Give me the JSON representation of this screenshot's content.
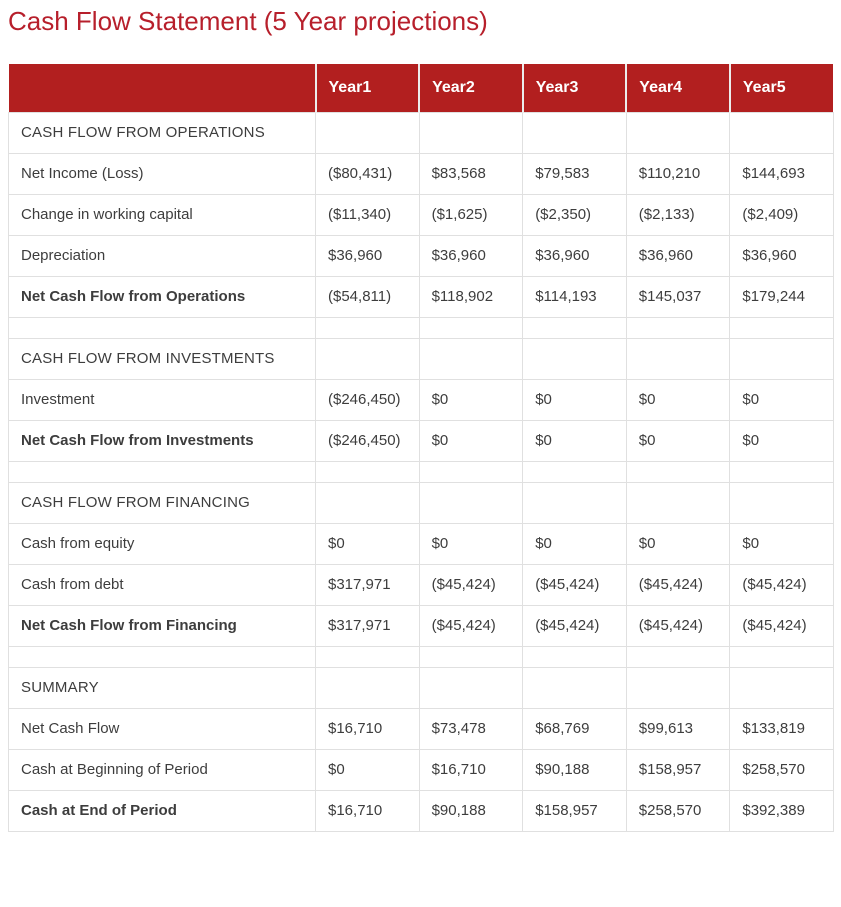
{
  "page": {
    "title": "Cash Flow Statement (5 Year projections)"
  },
  "colors": {
    "title_color": "#b71f2b",
    "header_bg": "#b21f1f",
    "header_text": "#ffffff",
    "body_text": "#3d3d3d",
    "border_color": "#e0e0e0"
  },
  "table": {
    "columns": [
      "",
      "Year1",
      "Year2",
      "Year3",
      "Year4",
      "Year5"
    ],
    "rows": [
      {
        "label": "CASH FLOW FROM OPERATIONS",
        "style": "section",
        "values": [
          "",
          "",
          "",
          "",
          ""
        ]
      },
      {
        "label": "Net Income (Loss)",
        "style": "data",
        "values": [
          "($80,431)",
          "$83,568",
          "$79,583",
          "$110,210",
          "$144,693"
        ]
      },
      {
        "label": "Change in working capital",
        "style": "data",
        "values": [
          "($11,340)",
          "($1,625)",
          "($2,350)",
          "($2,133)",
          "($2,409)"
        ]
      },
      {
        "label": "Depreciation",
        "style": "data",
        "values": [
          "$36,960",
          "$36,960",
          "$36,960",
          "$36,960",
          "$36,960"
        ]
      },
      {
        "label": "Net Cash Flow from Operations",
        "style": "total",
        "values": [
          "($54,811)",
          "$118,902",
          "$114,193",
          "$145,037",
          "$179,244"
        ]
      },
      {
        "label": "",
        "style": "spacer",
        "values": [
          "",
          "",
          "",
          "",
          ""
        ]
      },
      {
        "label": "CASH FLOW FROM INVESTMENTS",
        "style": "section",
        "values": [
          "",
          "",
          "",
          "",
          ""
        ]
      },
      {
        "label": "Investment",
        "style": "data",
        "values": [
          "($246,450)",
          "$0",
          "$0",
          "$0",
          "$0"
        ]
      },
      {
        "label": "Net Cash Flow from Investments",
        "style": "total",
        "values": [
          "($246,450)",
          "$0",
          "$0",
          "$0",
          "$0"
        ]
      },
      {
        "label": "",
        "style": "spacer",
        "values": [
          "",
          "",
          "",
          "",
          ""
        ]
      },
      {
        "label": "CASH FLOW FROM FINANCING",
        "style": "section",
        "values": [
          "",
          "",
          "",
          "",
          ""
        ]
      },
      {
        "label": "Cash from equity",
        "style": "data",
        "values": [
          "$0",
          "$0",
          "$0",
          "$0",
          "$0"
        ]
      },
      {
        "label": "Cash from debt",
        "style": "data",
        "values": [
          "$317,971",
          "($45,424)",
          "($45,424)",
          "($45,424)",
          "($45,424)"
        ]
      },
      {
        "label": "Net Cash Flow from Financing",
        "style": "total",
        "values": [
          "$317,971",
          "($45,424)",
          "($45,424)",
          "($45,424)",
          "($45,424)"
        ]
      },
      {
        "label": "",
        "style": "spacer",
        "values": [
          "",
          "",
          "",
          "",
          ""
        ]
      },
      {
        "label": "SUMMARY",
        "style": "section",
        "values": [
          "",
          "",
          "",
          "",
          ""
        ]
      },
      {
        "label": "Net Cash Flow",
        "style": "data",
        "values": [
          "$16,710",
          "$73,478",
          "$68,769",
          "$99,613",
          "$133,819"
        ]
      },
      {
        "label": "Cash at Beginning of Period",
        "style": "data",
        "values": [
          "$0",
          "$16,710",
          "$90,188",
          "$158,957",
          "$258,570"
        ]
      },
      {
        "label": "Cash at End of Period",
        "style": "total",
        "values": [
          "$16,710",
          "$90,188",
          "$158,957",
          "$258,570",
          "$392,389"
        ]
      }
    ]
  }
}
